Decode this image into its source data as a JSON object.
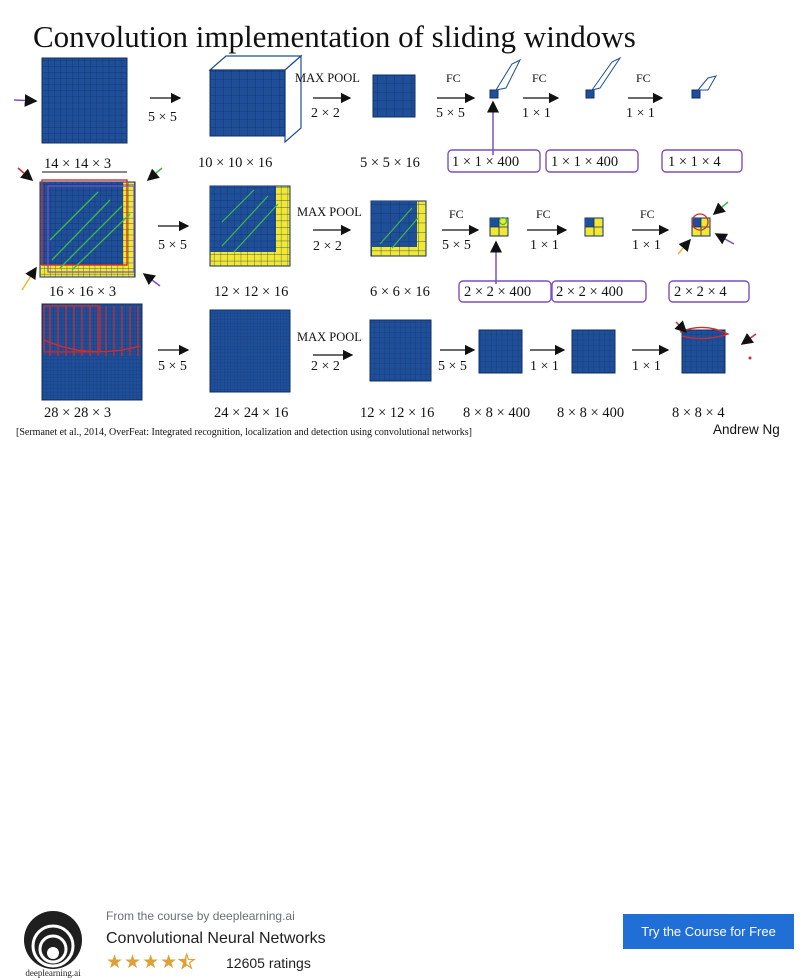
{
  "slide": {
    "title": "Convolution implementation of sliding windows",
    "row1": {
      "input": "14 × 14 × 3",
      "conv": "5 × 5",
      "l1": "10 × 10 × 16",
      "pool_label": "MAX POOL",
      "pool": "2 × 2",
      "l2": "5 × 5 × 16",
      "fc1_label": "FC",
      "fc1": "5 × 5",
      "l3": "1 × 1 × 400",
      "fc2_label": "FC",
      "fc2": "1 × 1",
      "l4": "1 × 1 × 400",
      "fc3_label": "FC",
      "fc3": "1 × 1",
      "out": "1 × 1 × 4"
    },
    "row2": {
      "input": "16 × 16 × 3",
      "conv": "5 × 5",
      "l1": "12 × 12 × 16",
      "pool_label": "MAX POOL",
      "pool": "2 × 2",
      "l2": "6 × 6 × 16",
      "fc1_label": "FC",
      "fc1": "5 × 5",
      "l3": "2 × 2 × 400",
      "fc2_label": "FC",
      "fc2": "1 × 1",
      "l4": "2 × 2 × 400",
      "fc3_label": "FC",
      "fc3": "1 × 1",
      "out": "2 × 2 × 4"
    },
    "row3": {
      "input": "28 × 28 × 3",
      "conv": "5 × 5",
      "l1": "24 × 24 × 16",
      "pool_label": "MAX POOL",
      "pool": "2 × 2",
      "l2": "12 × 12 × 16",
      "fc1": "5 × 5",
      "l3": "8 × 8 × 400",
      "fc2": "1 × 1",
      "l4": "8 × 8 × 400",
      "fc3": "1 × 1",
      "out": "8 × 8 × 4"
    },
    "citation": "[Sermanet et al., 2014, OverFeat: Integrated recognition, localization and detection using convolutional networks]",
    "author": "Andrew Ng"
  },
  "footer": {
    "logo_text": "deeplearning.ai",
    "from_text": "From the course by deeplearning.ai",
    "course_title": "Convolutional Neural Networks",
    "rating": 4.5,
    "ratings_count": "12605 ratings",
    "cta_label": "Try the Course for Free"
  },
  "colors": {
    "grid_blue": "#1f4f99",
    "grid_yellow": "#f2e832",
    "cta_blue": "#1f6fd6",
    "star": "#e0a036",
    "annotation_purple": "#7b4fc4",
    "annotation_green": "#3db84a",
    "annotation_red": "#d42b2b"
  }
}
